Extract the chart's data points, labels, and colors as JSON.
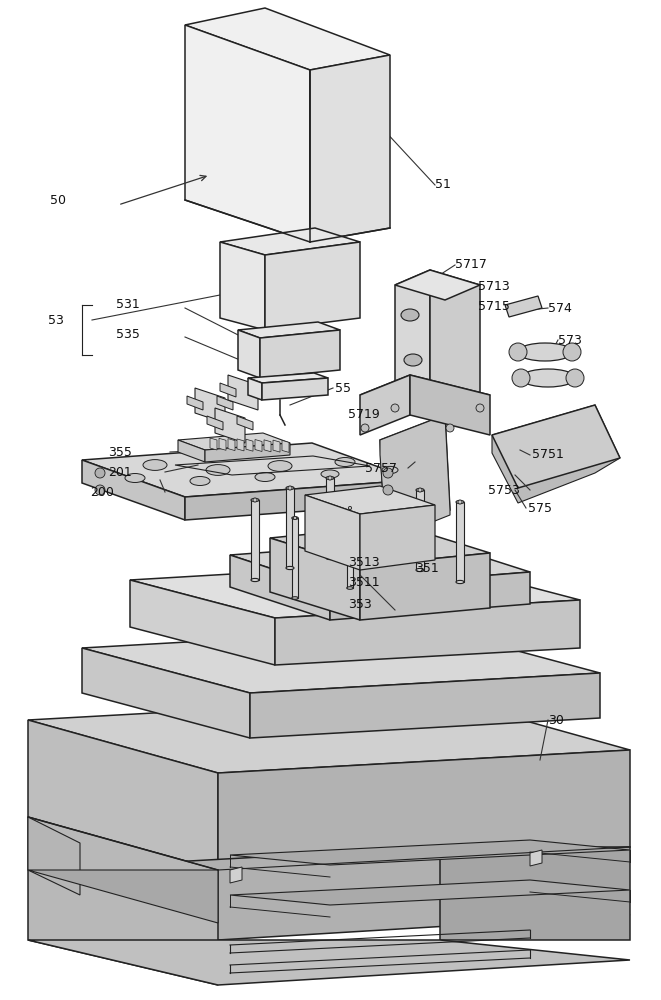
{
  "bg_color": "#ffffff",
  "lc": "#222222",
  "lw": 1.1,
  "thin": 0.7,
  "fs": 9.0
}
